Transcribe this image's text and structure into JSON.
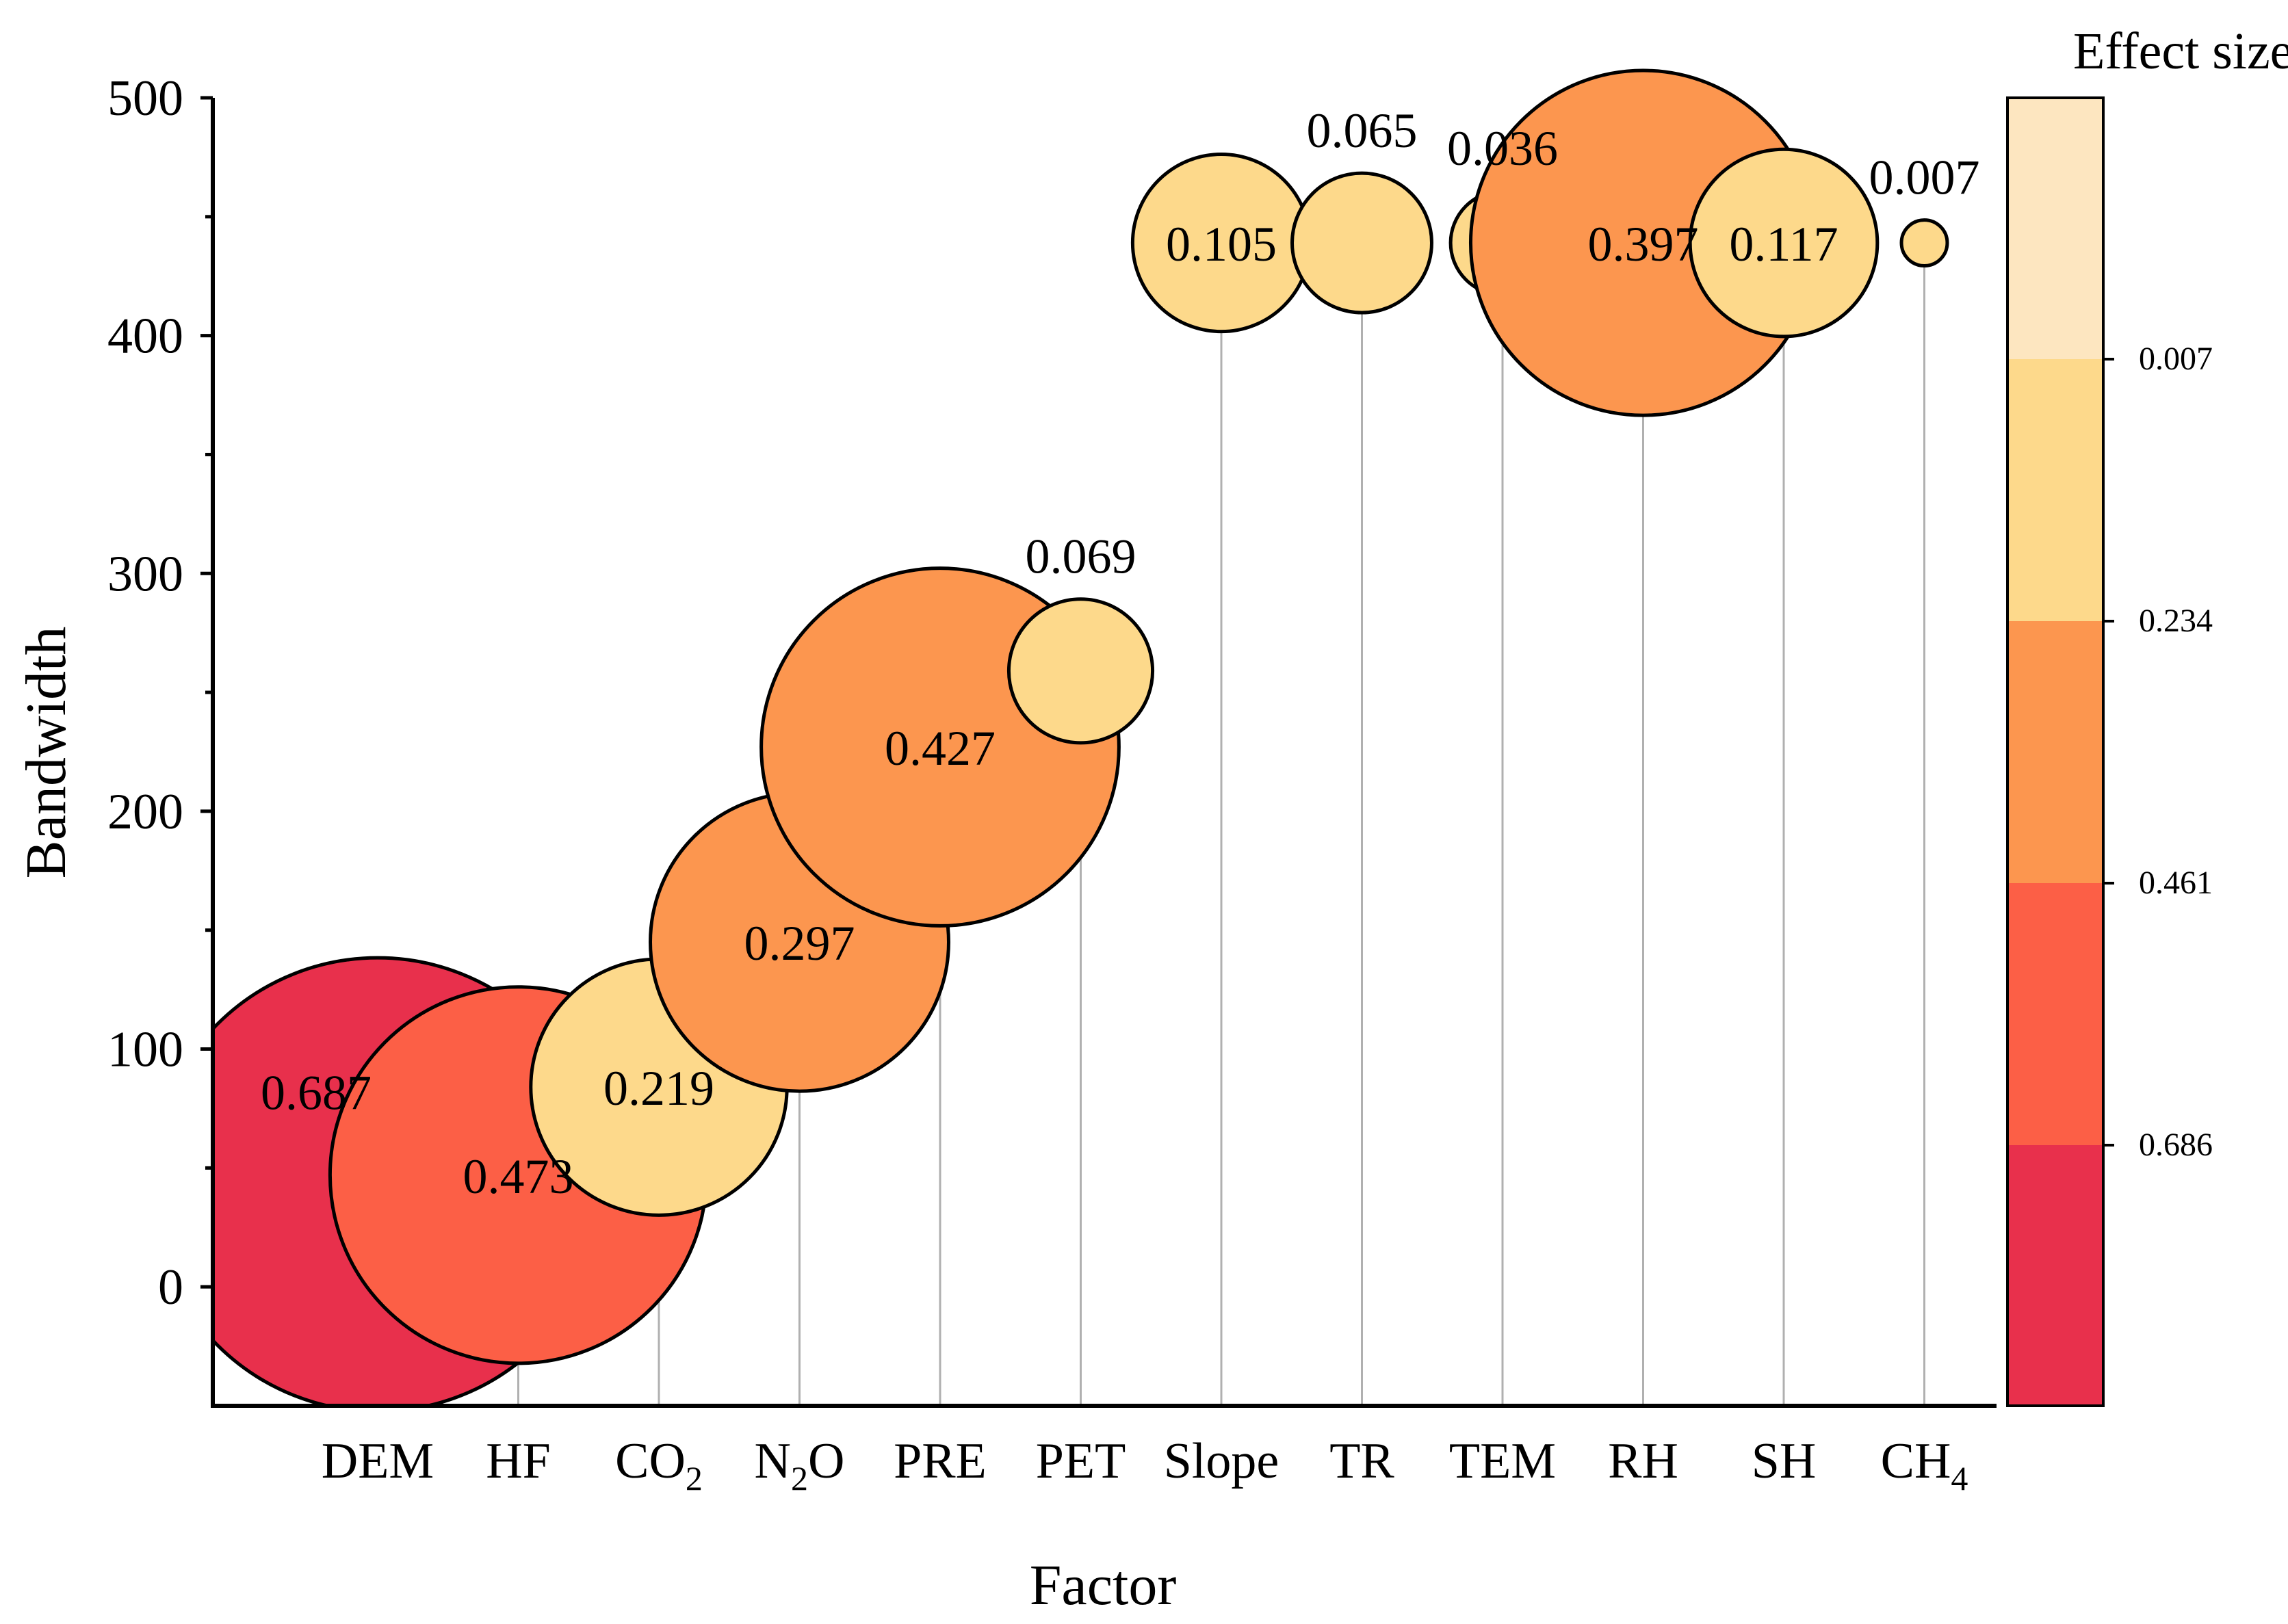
{
  "chart_data": {
    "type": "bubble",
    "xlabel": "Factor",
    "ylabel": "Bandwidth",
    "ylim": [
      -50,
      500
    ],
    "yticks": [
      0,
      100,
      200,
      300,
      400,
      500
    ],
    "points": [
      {
        "factor": "DEM",
        "base": "DEM",
        "sub": "",
        "bandwidth": 43,
        "effect": 0.687,
        "label": "0.687"
      },
      {
        "factor": "HF",
        "base": "HF",
        "sub": "",
        "bandwidth": 47,
        "effect": 0.473,
        "label": "0.473"
      },
      {
        "factor": "CO2",
        "base": "CO",
        "sub": "2",
        "bandwidth": 84,
        "effect": 0.219,
        "label": "0.219"
      },
      {
        "factor": "N2O",
        "base": "N",
        "sub": "2",
        "after": "O",
        "bandwidth": 145,
        "effect": 0.297,
        "label": "0.297"
      },
      {
        "factor": "PRE",
        "base": "PRE",
        "sub": "",
        "bandwidth": 227,
        "effect": 0.427,
        "label": "0.427"
      },
      {
        "factor": "PET",
        "base": "PET",
        "sub": "",
        "bandwidth": 259,
        "effect": 0.069,
        "label": "0.069"
      },
      {
        "factor": "Slope",
        "base": "Slope",
        "sub": "",
        "bandwidth": 439,
        "effect": 0.105,
        "label": "0.105"
      },
      {
        "factor": "TR",
        "base": "TR",
        "sub": "",
        "bandwidth": 439,
        "effect": 0.065,
        "label": "0.065"
      },
      {
        "factor": "TEM",
        "base": "TEM",
        "sub": "",
        "bandwidth": 439,
        "effect": 0.036,
        "label": "0.036"
      },
      {
        "factor": "RH",
        "base": "RH",
        "sub": "",
        "bandwidth": 439,
        "effect": 0.397,
        "label": "0.397"
      },
      {
        "factor": "SH",
        "base": "SH",
        "sub": "",
        "bandwidth": 439,
        "effect": 0.117,
        "label": "0.117"
      },
      {
        "factor": "CH4",
        "base": "CH",
        "sub": "4",
        "bandwidth": 439,
        "effect": 0.007,
        "label": "0.007"
      }
    ],
    "colorbar": {
      "title": "Effect size",
      "tick_labels": [
        "0.007",
        "0.234",
        "0.461",
        "0.686"
      ],
      "bands_top_to_bottom": [
        "#fde6c0",
        "#fdd98b",
        "#fc964f",
        "#fc5f46",
        "#e8304c"
      ]
    },
    "color_bins": [
      {
        "min": 0.0,
        "max": 0.25,
        "color": "#fdd98b"
      },
      {
        "min": 0.25,
        "max": 0.45,
        "color": "#fc964f"
      },
      {
        "min": 0.45,
        "max": 0.6,
        "color": "#fc5f46"
      },
      {
        "min": 0.6,
        "max": 1.0,
        "color": "#e8304c"
      }
    ]
  }
}
